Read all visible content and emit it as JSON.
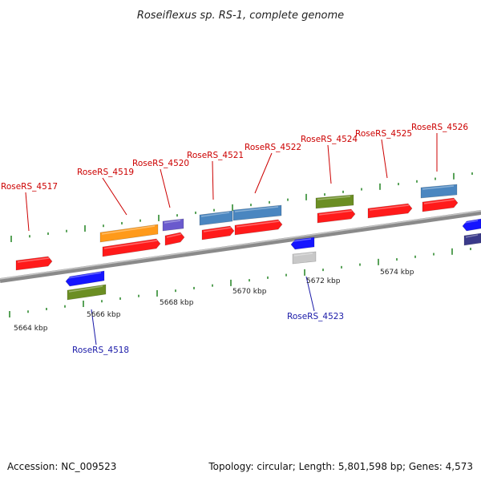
{
  "title": "Roseiflexus sp. RS-1, complete genome",
  "footer": {
    "accession": "Accession: NC_009523",
    "summary": "Topology: circular; Length: 5,801,598 bp; Genes: 4,573"
  },
  "colors": {
    "forward_label": "#cc0000",
    "reverse_label": "#1a1aa8",
    "backbone": "#8a8a8a",
    "tick": "#2f8a2f",
    "red": "#ff1a1a",
    "orange": "#ff9a1a",
    "steelblue": "#4a86c0",
    "olive": "#6b8e23",
    "blue": "#1515ff",
    "purple": "#6a5acd",
    "gray": "#c8c8c8",
    "navy": "#3a3a8a"
  },
  "kbp_labels": [
    {
      "key": "k5664",
      "text": "5664 kbp"
    },
    {
      "key": "k5666",
      "text": "5666 kbp"
    },
    {
      "key": "k5668",
      "text": "5668 kbp"
    },
    {
      "key": "k5670",
      "text": "5670 kbp"
    },
    {
      "key": "k5672",
      "text": "5672 kbp"
    },
    {
      "key": "k5674",
      "text": "5674 kbp"
    }
  ],
  "gene_labels": [
    {
      "key": "g4517",
      "text": "RoseRS_4517",
      "strand": "forward"
    },
    {
      "key": "g4518",
      "text": "RoseRS_4518",
      "strand": "reverse"
    },
    {
      "key": "g4519",
      "text": "RoseRS_4519",
      "strand": "forward"
    },
    {
      "key": "g4520",
      "text": "RoseRS_4520",
      "strand": "forward"
    },
    {
      "key": "g4521",
      "text": "RoseRS_4521",
      "strand": "forward"
    },
    {
      "key": "g4522",
      "text": "RoseRS_4522",
      "strand": "forward"
    },
    {
      "key": "g4523",
      "text": "RoseRS_4523",
      "strand": "reverse"
    },
    {
      "key": "g4524",
      "text": "RoseRS_4524",
      "strand": "forward"
    },
    {
      "key": "g4525",
      "text": "RoseRS_4525",
      "strand": "forward"
    },
    {
      "key": "g4526",
      "text": "RoseRS_4526",
      "strand": "forward"
    }
  ]
}
